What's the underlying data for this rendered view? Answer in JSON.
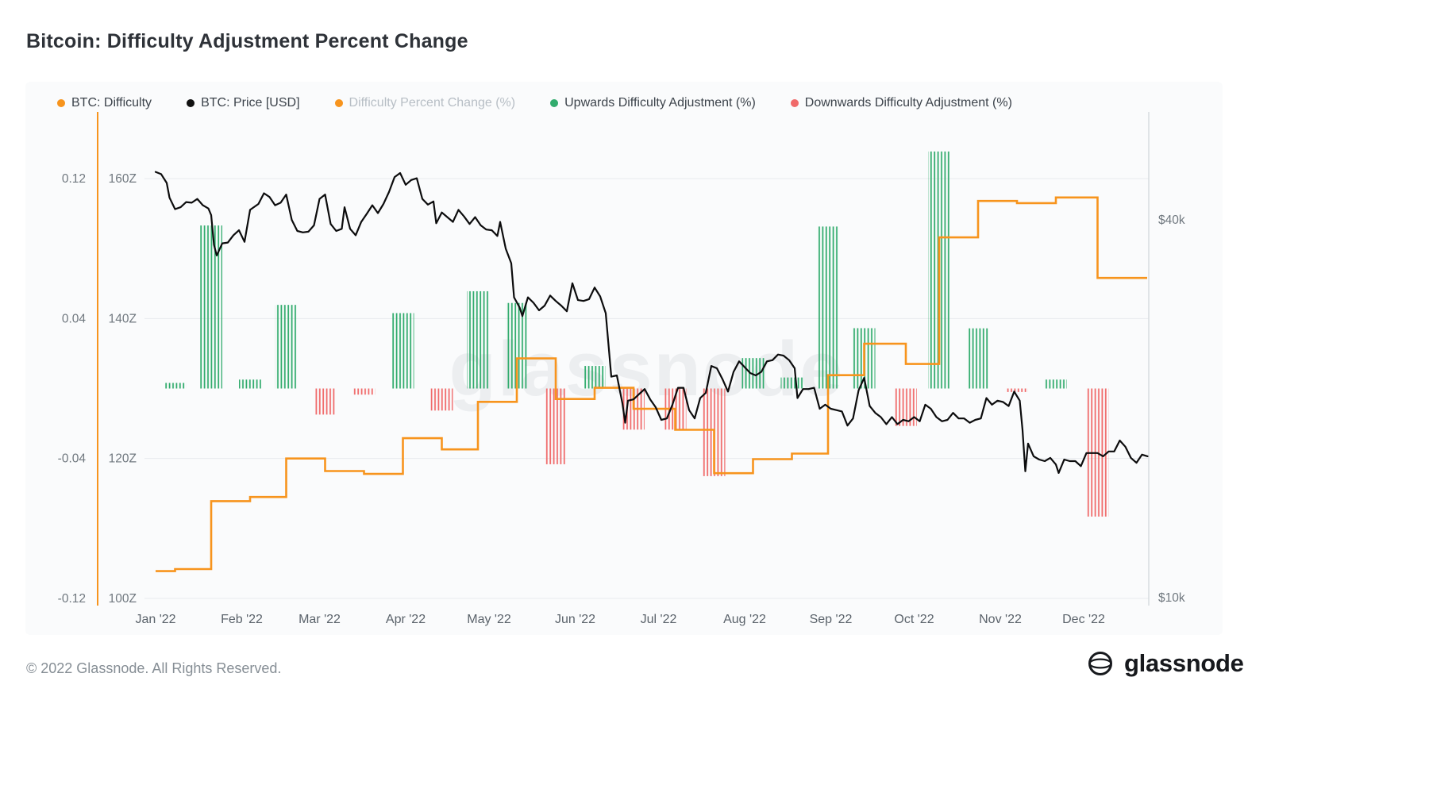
{
  "title": "Bitcoin: Difficulty Adjustment Percent Change",
  "footer": {
    "copyright": "© 2022 Glassnode. All Rights Reserved.",
    "logo_text": "glassnode"
  },
  "legend": {
    "items": [
      {
        "label": "BTC: Difficulty",
        "color": "#f7941d",
        "enabled": true
      },
      {
        "label": "BTC: Price [USD]",
        "color": "#111111",
        "enabled": true
      },
      {
        "label": "Difficulty Percent Change (%)",
        "color": "#f7941d",
        "enabled": false
      },
      {
        "label": "Upwards Difficulty Adjustment (%)",
        "color": "#31ab6d",
        "enabled": true
      },
      {
        "label": "Downwards Difficulty Adjustment (%)",
        "color": "#f06a6a",
        "enabled": true
      }
    ]
  },
  "chart_data": {
    "type": "mixed",
    "title": "Bitcoin: Difficulty Adjustment Percent Change",
    "watermark": "glassnode",
    "x_axis": {
      "year": 2022,
      "months": [
        {
          "label": "Jan '22",
          "day": 0
        },
        {
          "label": "Feb '22",
          "day": 31
        },
        {
          "label": "Mar '22",
          "day": 59
        },
        {
          "label": "Apr '22",
          "day": 90
        },
        {
          "label": "May '22",
          "day": 120
        },
        {
          "label": "Jun '22",
          "day": 151
        },
        {
          "label": "Jul '22",
          "day": 181
        },
        {
          "label": "Aug '22",
          "day": 212
        },
        {
          "label": "Sep '22",
          "day": 243
        },
        {
          "label": "Oct '22",
          "day": 273
        },
        {
          "label": "Nov '22",
          "day": 304
        },
        {
          "label": "Dec '22",
          "day": 334
        }
      ]
    },
    "axes": {
      "percent": {
        "side": "left",
        "ticks": [
          {
            "label": "0.12",
            "value": 0.12
          },
          {
            "label": "0.04",
            "value": 0.04
          },
          {
            "label": "-0.04",
            "value": -0.04
          },
          {
            "label": "-0.12",
            "value": -0.12
          }
        ]
      },
      "difficulty": {
        "side": "left",
        "unit": "Z",
        "color": "#f7941d",
        "ticks": [
          {
            "label": "160Z",
            "value": 160
          },
          {
            "label": "140Z",
            "value": 140
          },
          {
            "label": "120Z",
            "value": 120
          },
          {
            "label": "100Z",
            "value": 100
          }
        ]
      },
      "price": {
        "side": "right",
        "scale": "log",
        "ticks": [
          {
            "label": "$40k",
            "value": 40000
          },
          {
            "label": "$10k",
            "value": 10000
          }
        ]
      }
    },
    "series": [
      {
        "name": "BTC: Difficulty",
        "type": "step-line",
        "axis": "difficulty",
        "unit": "zettahash",
        "color": "#f7941d",
        "enabled": true,
        "points": [
          [
            0,
            103.9
          ],
          [
            7,
            104.2
          ],
          [
            20,
            113.9
          ],
          [
            34,
            114.5
          ],
          [
            47,
            120.0
          ],
          [
            61,
            118.2
          ],
          [
            75,
            117.8
          ],
          [
            89,
            122.9
          ],
          [
            103,
            121.3
          ],
          [
            116,
            128.1
          ],
          [
            130,
            134.3
          ],
          [
            144,
            128.5
          ],
          [
            158,
            130.1
          ],
          [
            172,
            127.1
          ],
          [
            187,
            124.1
          ],
          [
            201,
            117.9
          ],
          [
            215,
            119.9
          ],
          [
            229,
            120.7
          ],
          [
            242,
            131.9
          ],
          [
            255,
            136.4
          ],
          [
            270,
            133.5
          ],
          [
            282,
            151.6
          ],
          [
            296,
            156.8
          ],
          [
            310,
            156.5
          ],
          [
            324,
            157.3
          ],
          [
            339,
            145.8
          ]
        ]
      },
      {
        "name": "BTC: Price [USD]",
        "type": "line",
        "axis": "price",
        "unit": "USD",
        "color": "#0c0c0d",
        "enabled": true,
        "points": [
          [
            0,
            47700
          ],
          [
            2,
            47300
          ],
          [
            4,
            45800
          ],
          [
            5,
            43400
          ],
          [
            7,
            41600
          ],
          [
            9,
            41900
          ],
          [
            11,
            42700
          ],
          [
            13,
            42600
          ],
          [
            15,
            43200
          ],
          [
            17,
            42200
          ],
          [
            19,
            41700
          ],
          [
            20,
            40700
          ],
          [
            21,
            36500
          ],
          [
            22,
            35100
          ],
          [
            24,
            36700
          ],
          [
            26,
            36800
          ],
          [
            28,
            37800
          ],
          [
            30,
            38500
          ],
          [
            32,
            36900
          ],
          [
            34,
            41500
          ],
          [
            37,
            42400
          ],
          [
            39,
            44100
          ],
          [
            41,
            43500
          ],
          [
            43,
            42200
          ],
          [
            45,
            42600
          ],
          [
            47,
            43900
          ],
          [
            49,
            40000
          ],
          [
            51,
            38400
          ],
          [
            53,
            38200
          ],
          [
            55,
            38300
          ],
          [
            57,
            39200
          ],
          [
            59,
            43200
          ],
          [
            61,
            43900
          ],
          [
            63,
            39400
          ],
          [
            65,
            38400
          ],
          [
            67,
            38700
          ],
          [
            68,
            41900
          ],
          [
            70,
            38700
          ],
          [
            72,
            37800
          ],
          [
            74,
            39700
          ],
          [
            76,
            40900
          ],
          [
            78,
            42200
          ],
          [
            80,
            41000
          ],
          [
            82,
            42400
          ],
          [
            84,
            44300
          ],
          [
            86,
            46800
          ],
          [
            88,
            47500
          ],
          [
            90,
            45500
          ],
          [
            92,
            46300
          ],
          [
            94,
            46600
          ],
          [
            96,
            43200
          ],
          [
            98,
            42300
          ],
          [
            100,
            42800
          ],
          [
            101,
            39500
          ],
          [
            103,
            41100
          ],
          [
            105,
            40400
          ],
          [
            107,
            39700
          ],
          [
            109,
            41500
          ],
          [
            111,
            40500
          ],
          [
            113,
            39400
          ],
          [
            115,
            40400
          ],
          [
            117,
            39200
          ],
          [
            119,
            38600
          ],
          [
            121,
            38500
          ],
          [
            123,
            37700
          ],
          [
            124,
            39700
          ],
          [
            126,
            36000
          ],
          [
            128,
            34100
          ],
          [
            129,
            30100
          ],
          [
            131,
            29000
          ],
          [
            132,
            28100
          ],
          [
            134,
            30100
          ],
          [
            136,
            29500
          ],
          [
            138,
            28700
          ],
          [
            140,
            29200
          ],
          [
            142,
            30300
          ],
          [
            144,
            29700
          ],
          [
            146,
            29200
          ],
          [
            148,
            28600
          ],
          [
            150,
            31700
          ],
          [
            152,
            29800
          ],
          [
            154,
            29700
          ],
          [
            156,
            29900
          ],
          [
            158,
            31200
          ],
          [
            160,
            30200
          ],
          [
            162,
            28400
          ],
          [
            164,
            22500
          ],
          [
            166,
            22600
          ],
          [
            168,
            20400
          ],
          [
            169,
            19000
          ],
          [
            170,
            20600
          ],
          [
            172,
            20700
          ],
          [
            174,
            21100
          ],
          [
            176,
            21500
          ],
          [
            178,
            20700
          ],
          [
            180,
            20100
          ],
          [
            182,
            19200
          ],
          [
            184,
            19300
          ],
          [
            186,
            20300
          ],
          [
            188,
            21600
          ],
          [
            190,
            21600
          ],
          [
            192,
            19900
          ],
          [
            194,
            19300
          ],
          [
            196,
            20800
          ],
          [
            198,
            21200
          ],
          [
            200,
            23400
          ],
          [
            202,
            23200
          ],
          [
            204,
            22300
          ],
          [
            206,
            21300
          ],
          [
            208,
            22900
          ],
          [
            210,
            23800
          ],
          [
            212,
            23300
          ],
          [
            214,
            22800
          ],
          [
            216,
            22600
          ],
          [
            218,
            22900
          ],
          [
            220,
            23800
          ],
          [
            222,
            23900
          ],
          [
            224,
            24400
          ],
          [
            226,
            24300
          ],
          [
            228,
            23900
          ],
          [
            230,
            23200
          ],
          [
            231,
            20800
          ],
          [
            233,
            21500
          ],
          [
            235,
            21500
          ],
          [
            237,
            21600
          ],
          [
            239,
            20000
          ],
          [
            241,
            20300
          ],
          [
            243,
            20000
          ],
          [
            245,
            19900
          ],
          [
            247,
            19800
          ],
          [
            249,
            18800
          ],
          [
            251,
            19300
          ],
          [
            253,
            21400
          ],
          [
            255,
            22400
          ],
          [
            257,
            20200
          ],
          [
            259,
            19700
          ],
          [
            261,
            19400
          ],
          [
            263,
            18900
          ],
          [
            265,
            19400
          ],
          [
            267,
            18900
          ],
          [
            269,
            19200
          ],
          [
            271,
            19100
          ],
          [
            273,
            19400
          ],
          [
            275,
            19100
          ],
          [
            277,
            20300
          ],
          [
            279,
            20000
          ],
          [
            281,
            19400
          ],
          [
            283,
            19100
          ],
          [
            285,
            19200
          ],
          [
            287,
            19700
          ],
          [
            289,
            19300
          ],
          [
            291,
            19300
          ],
          [
            293,
            19000
          ],
          [
            295,
            19200
          ],
          [
            297,
            19300
          ],
          [
            299,
            20800
          ],
          [
            301,
            20300
          ],
          [
            303,
            20600
          ],
          [
            305,
            20500
          ],
          [
            307,
            20200
          ],
          [
            309,
            21300
          ],
          [
            311,
            20600
          ],
          [
            312,
            18500
          ],
          [
            313,
            15900
          ],
          [
            314,
            17600
          ],
          [
            316,
            16800
          ],
          [
            318,
            16600
          ],
          [
            320,
            16500
          ],
          [
            322,
            16700
          ],
          [
            324,
            16300
          ],
          [
            325,
            15800
          ],
          [
            327,
            16600
          ],
          [
            329,
            16500
          ],
          [
            331,
            16500
          ],
          [
            333,
            16200
          ],
          [
            335,
            17000
          ],
          [
            337,
            17000
          ],
          [
            339,
            17000
          ],
          [
            341,
            16800
          ],
          [
            343,
            17100
          ],
          [
            345,
            17100
          ],
          [
            347,
            17800
          ],
          [
            349,
            17400
          ],
          [
            351,
            16700
          ],
          [
            353,
            16400
          ],
          [
            355,
            16900
          ],
          [
            357,
            16800
          ]
        ]
      },
      {
        "name": "Difficulty Percent Change (%)",
        "type": "line",
        "axis": "percent",
        "color": "#f7941d",
        "enabled": false,
        "points": []
      },
      {
        "name": "Upwards Difficulty Adjustment (%)",
        "type": "hatched-bar",
        "axis": "percent",
        "direction": "up",
        "color": "#31ab6d",
        "enabled": true,
        "events": [
          [
            7,
            0.32
          ],
          [
            20,
            9.32
          ],
          [
            34,
            0.51
          ],
          [
            47,
            4.78
          ],
          [
            89,
            4.31
          ],
          [
            116,
            5.56
          ],
          [
            130,
            4.89
          ],
          [
            158,
            1.29
          ],
          [
            215,
            1.74
          ],
          [
            229,
            0.63
          ],
          [
            242,
            9.26
          ],
          [
            255,
            3.45
          ],
          [
            282,
            13.55
          ],
          [
            296,
            3.44
          ],
          [
            324,
            0.51
          ]
        ]
      },
      {
        "name": "Downwards Difficulty Adjustment (%)",
        "type": "hatched-bar",
        "axis": "percent",
        "direction": "down",
        "color": "#f06a6a",
        "enabled": true,
        "events": [
          [
            61,
            1.49
          ],
          [
            75,
            0.35
          ],
          [
            103,
            1.26
          ],
          [
            144,
            4.33
          ],
          [
            172,
            2.35
          ],
          [
            187,
            2.35
          ],
          [
            201,
            5.01
          ],
          [
            270,
            2.14
          ],
          [
            310,
            0.2
          ],
          [
            339,
            7.32
          ]
        ]
      }
    ]
  }
}
